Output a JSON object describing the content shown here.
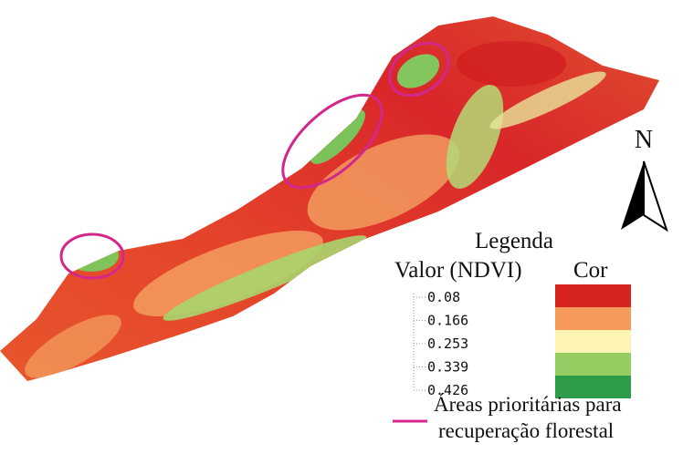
{
  "north": "N",
  "legend": {
    "title": "Legenda",
    "value_header": "Valor (NDVI)",
    "color_header": "Cor",
    "items": [
      {
        "label": "0.08",
        "color": "#d7231f"
      },
      {
        "label": "0.166",
        "color": "#f59a5a"
      },
      {
        "label": "0.253",
        "color": "#fdf3b3"
      },
      {
        "label": "0.339",
        "color": "#95cd63"
      },
      {
        "label": "0.426",
        "color": "#2f9c49"
      }
    ],
    "priority_lines": [
      "Áreas prioritárias para",
      "recuperação florestal"
    ]
  }
}
